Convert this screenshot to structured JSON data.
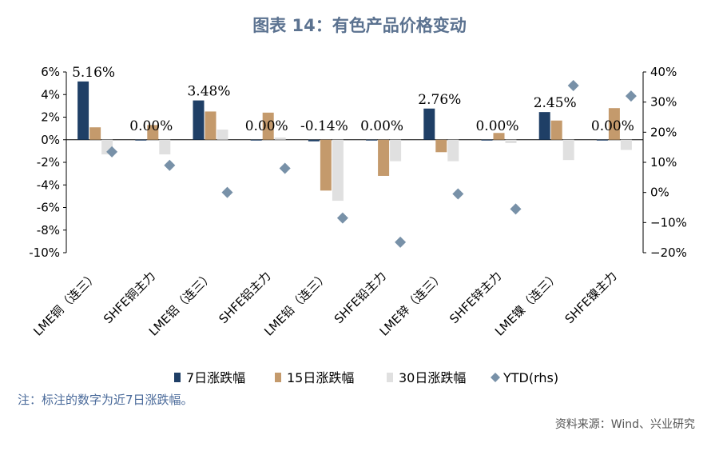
{
  "chart_data": {
    "type": "bar",
    "title": "图表 14：有色产品价格变动",
    "categories": [
      "LME铜（连三）",
      "SHFE铜主力",
      "LME铝（连三）",
      "SHFE铝主力",
      "LME铅（连三）",
      "SHFE铅主力",
      "LME锌（连三）",
      "SHFE锌主力",
      "LME镍（连三）",
      "SHFE镍主力"
    ],
    "series": [
      {
        "name": "7日涨跌幅",
        "axis": "left",
        "color": "#1f3f66",
        "values": [
          5.16,
          0.0,
          3.48,
          0.0,
          -0.14,
          0.0,
          2.76,
          0.0,
          2.45,
          0.0
        ]
      },
      {
        "name": "15日涨跌幅",
        "axis": "left",
        "color": "#c49a6c",
        "values": [
          1.1,
          1.3,
          2.5,
          2.4,
          -4.5,
          -3.2,
          -1.1,
          0.6,
          1.7,
          2.8
        ]
      },
      {
        "name": "30日涨跌幅",
        "axis": "left",
        "color": "#e0e0e0",
        "values": [
          -1.3,
          -1.3,
          0.9,
          0.2,
          -5.4,
          -1.9,
          -1.9,
          -0.3,
          -1.8,
          -0.9
        ]
      },
      {
        "name": "YTD(rhs)",
        "axis": "right",
        "type": "scatter",
        "color": "#7891a8",
        "values": [
          13.5,
          9.0,
          0.0,
          8.0,
          -8.5,
          -16.5,
          -0.5,
          -5.5,
          35.5,
          32.0
        ]
      }
    ],
    "data_labels": [
      "5.16%",
      "0.00%",
      "3.48%",
      "0.00%",
      "-0.14%",
      "0.00%",
      "2.76%",
      "0.00%",
      "2.45%",
      "0.00%"
    ],
    "ylim": [
      -10,
      6
    ],
    "yticks": [
      "6%",
      "4%",
      "2%",
      "0%",
      "-2%",
      "-4%",
      "-6%",
      "-8%",
      "-10%"
    ],
    "y2lim": [
      -20,
      40
    ],
    "y2ticks": [
      "40%",
      "30%",
      "20%",
      "10%",
      "0%",
      "−10%",
      "−20%"
    ],
    "legend_position": "bottom"
  },
  "note": "注：标注的数字为近7日涨跌幅。",
  "source": "资料来源：Wind、兴业研究"
}
